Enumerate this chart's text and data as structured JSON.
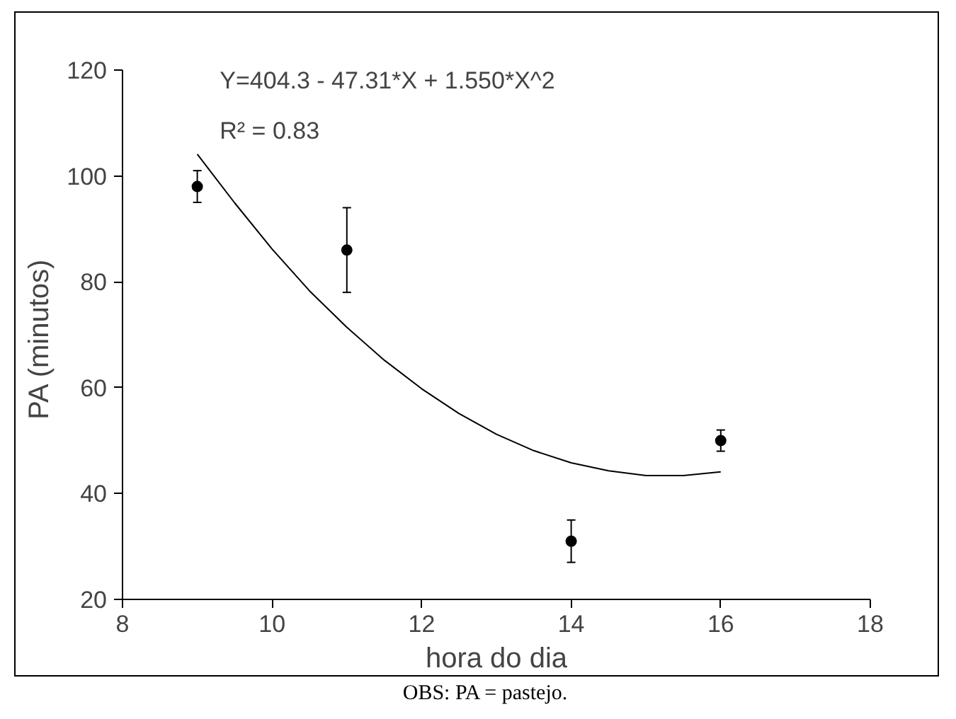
{
  "chart_data": {
    "type": "scatter",
    "xlabel": "hora do dia",
    "ylabel": "PA  (minutos)",
    "xlim": [
      8,
      18
    ],
    "ylim": [
      20,
      120
    ],
    "xticks": [
      8,
      10,
      12,
      14,
      16,
      18
    ],
    "yticks": [
      20,
      40,
      60,
      80,
      100,
      120
    ],
    "grid": false,
    "marker": "circle",
    "series": [
      {
        "color": "#000000",
        "x": [
          9,
          11,
          14,
          16
        ],
        "values": [
          98,
          86,
          31,
          50
        ],
        "errors": [
          3,
          8,
          4,
          2
        ]
      },
      {
        "type": "line",
        "color": "#000000",
        "line_style": "solid",
        "marker": "none",
        "x": [
          9,
          9.5,
          10,
          10.5,
          11,
          11.5,
          12,
          12.5,
          13,
          13.5,
          14,
          14.5,
          15,
          15.5,
          16
        ],
        "values": [
          104.1,
          94.9,
          86.2,
          78.3,
          71.4,
          65.2,
          59.8,
          55.1,
          51.2,
          48.1,
          45.8,
          44.3,
          43.4,
          43.4,
          44.1
        ]
      }
    ],
    "annotations": [
      "Y=404.3 - 47.31*X + 1.550*X^2",
      "R² = 0.83",
      "OBS: PA = pastejo."
    ]
  }
}
